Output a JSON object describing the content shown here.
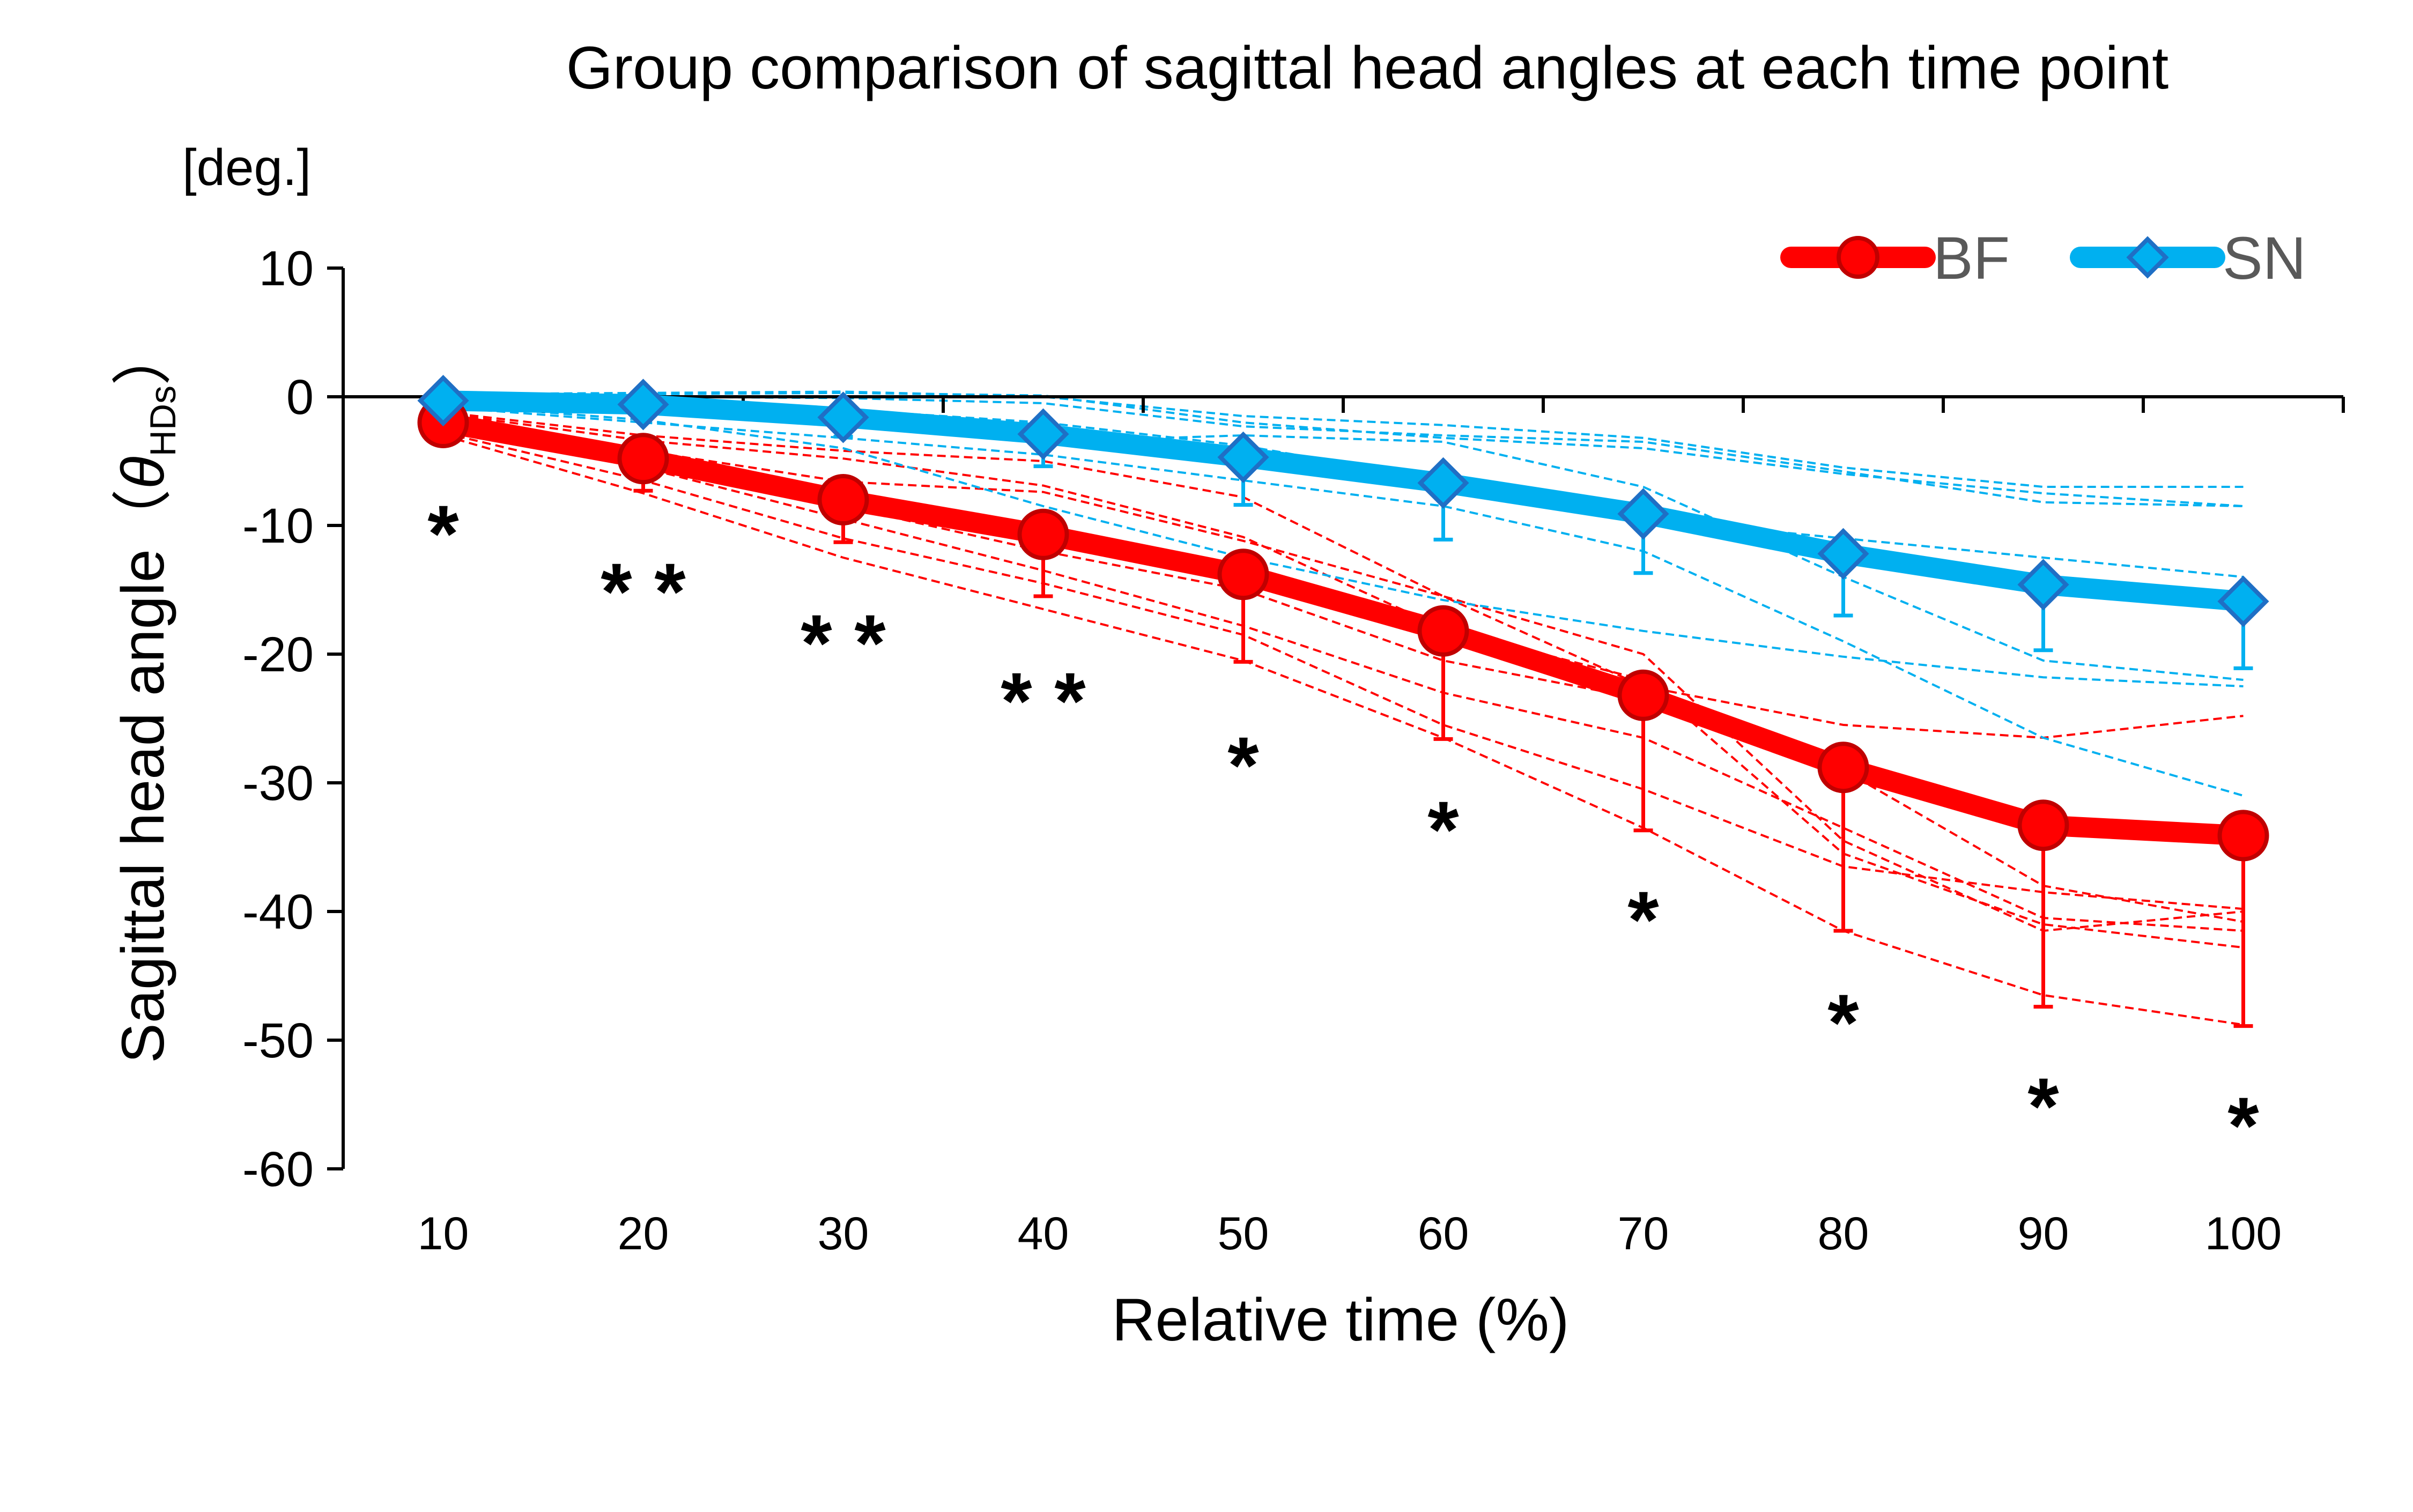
{
  "chart_data": {
    "type": "line",
    "title": "Group comparison of sagittal head angles at each time point",
    "unit": "[deg.]",
    "xlabel": "Relative time (%)",
    "ylabel_main": "Sagittal head angle",
    "ylabel_symbol": "θ",
    "ylabel_subscript": "HDs",
    "ylim": [
      -60,
      10
    ],
    "yticks": [
      "10",
      "0",
      "-10",
      "-20",
      "-30",
      "-40",
      "-50",
      "-60"
    ],
    "ytick_values": [
      10,
      0,
      -10,
      -20,
      -30,
      -40,
      -50,
      -60
    ],
    "categories": [
      "10",
      "20",
      "30",
      "40",
      "50",
      "60",
      "70",
      "80",
      "90",
      "100"
    ],
    "legend_position": "top-right",
    "series": [
      {
        "name": "BF",
        "color": "#FF0000",
        "marker": "circle",
        "values": [
          -2,
          -4.8,
          -8,
          -10.7,
          -13.8,
          -18.2,
          -23.2,
          -28.8,
          -33.3,
          -34.1
        ],
        "sd": [
          1.3,
          2.5,
          3.3,
          4.8,
          6.8,
          8.4,
          10.5,
          12.7,
          14.1,
          14.8
        ]
      },
      {
        "name": "SN",
        "color": "#00B0F0",
        "marker": "diamond",
        "values": [
          -0.3,
          -0.6,
          -1.6,
          -2.9,
          -4.7,
          -6.7,
          -9.1,
          -12.2,
          -14.6,
          -15.9
        ],
        "sd": [
          0.5,
          0.9,
          1.5,
          2.5,
          3.7,
          4.4,
          4.6,
          4.8,
          5.1,
          5.2
        ]
      }
    ],
    "individual_trials": {
      "BF": [
        [
          -1.2,
          -3.0,
          -4.2,
          -5.0,
          -7.8,
          -15.5,
          -22.5,
          -25.5,
          -26.5,
          -24.8
        ],
        [
          -1.3,
          -3.4,
          -4.8,
          -6.9,
          -10.9,
          -18.0,
          -22.0,
          -35.5,
          -41.0,
          -42.8
        ],
        [
          -2.0,
          -4.2,
          -6.6,
          -7.4,
          -11.2,
          -15.5,
          -20.0,
          -34.5,
          -41.5,
          -40.0
        ],
        [
          -2.1,
          -4.8,
          -8.5,
          -12.0,
          -15.0,
          -20.5,
          -23.5,
          -29.0,
          -38.0,
          -40.8
        ],
        [
          -2.4,
          -5.5,
          -9.5,
          -13.5,
          -17.8,
          -23.0,
          -26.5,
          -33.5,
          -40.5,
          -41.5
        ],
        [
          -2.8,
          -6.5,
          -11.0,
          -14.5,
          -18.5,
          -25.5,
          -30.5,
          -36.5,
          -38.5,
          -39.8
        ],
        [
          -3.0,
          -7.5,
          -12.5,
          -16.5,
          -20.5,
          -26.5,
          -33.5,
          -41.5,
          -46.5,
          -48.8
        ]
      ],
      "SN": [
        [
          0.2,
          0.3,
          0.4,
          0.0,
          -1.5,
          -2.2,
          -3.2,
          -5.5,
          -7.0,
          -7.0
        ],
        [
          0.0,
          0.2,
          0.3,
          0.1,
          -2.0,
          -3.2,
          -4.0,
          -6.0,
          -7.5,
          -8.5
        ],
        [
          -0.2,
          0.0,
          -0.1,
          -0.5,
          -2.3,
          -3.0,
          -3.5,
          -5.8,
          -8.2,
          -8.5
        ],
        [
          -0.3,
          -0.5,
          -1.0,
          -2.0,
          -3.8,
          -6.5,
          -9.5,
          -11.0,
          -12.5,
          -14.0
        ],
        [
          -0.5,
          -1.2,
          -2.0,
          -3.5,
          -3.0,
          -3.5,
          -7.0,
          -14.0,
          -20.5,
          -22.0
        ],
        [
          -0.6,
          -1.8,
          -4.0,
          -8.5,
          -12.5,
          -15.8,
          -18.2,
          -20.2,
          -21.8,
          -22.5
        ],
        [
          -0.8,
          -2.0,
          -3.2,
          -4.5,
          -6.5,
          -8.5,
          -12.0,
          -19.0,
          -26.5,
          -31.0
        ]
      ]
    },
    "significance_marks": [
      "*",
      "**",
      "**",
      "**",
      "*",
      "*",
      "*",
      "*",
      "*",
      "*"
    ],
    "significance_y": [
      -10.5,
      -15,
      -19,
      -23.5,
      -28.5,
      -33.5,
      -40.5,
      -48.5,
      -55,
      -56.5
    ]
  }
}
